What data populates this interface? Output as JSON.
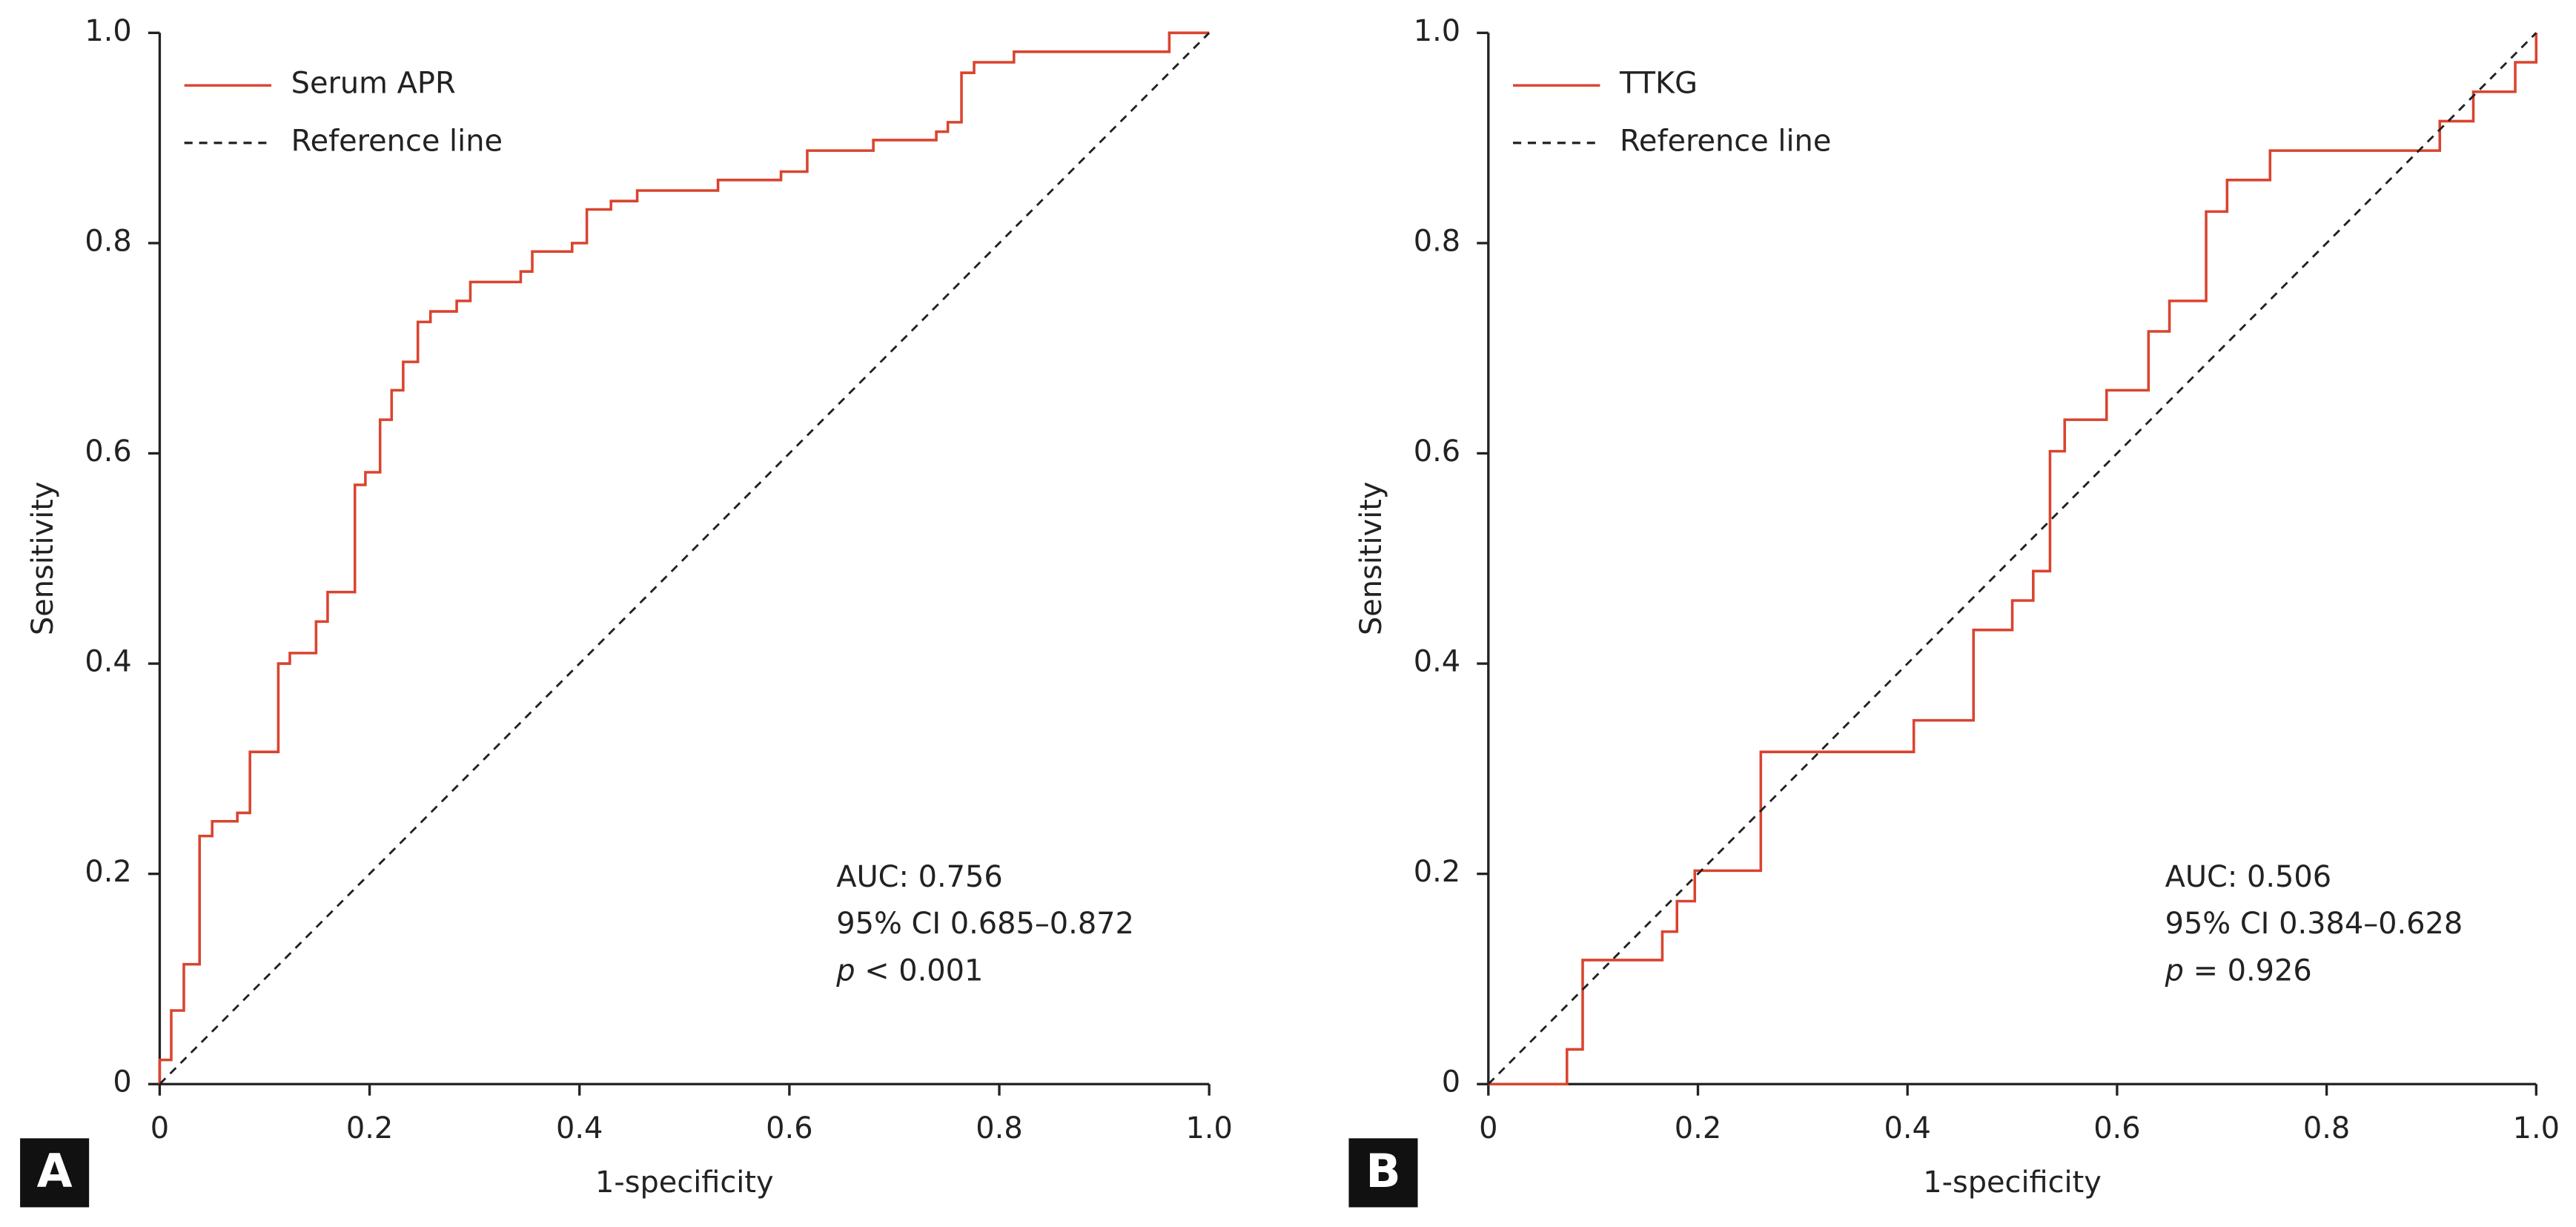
{
  "chart_data": [
    {
      "type": "line",
      "panel": "A",
      "xlabel": "1-specificity",
      "ylabel": "Sensitivity",
      "xlim": [
        0,
        1
      ],
      "ylim": [
        0,
        1
      ],
      "xticks": [
        0,
        0.2,
        0.4,
        0.6,
        0.8,
        {
          "value": 1,
          "label": "1.0"
        }
      ],
      "yticks": [
        0,
        0.2,
        0.4,
        0.6,
        0.8,
        {
          "value": 1,
          "label": "1.0"
        }
      ],
      "legend": "upper left",
      "annotations": [
        "AUC: 0.756",
        "95% CI 0.685–0.872",
        "p < 0.001"
      ],
      "series": [
        {
          "name": "Serum APR",
          "color": "#d9442f",
          "dashed": false,
          "x": [
            0,
            0,
            0.011,
            0.011,
            0.023,
            0.023,
            0.038,
            0.038,
            0.05,
            0.05,
            0.074,
            0.074,
            0.086,
            0.086,
            0.113,
            0.113,
            0.124,
            0.124,
            0.149,
            0.149,
            0.16,
            0.16,
            0.186,
            0.186,
            0.196,
            0.196,
            0.21,
            0.21,
            0.221,
            0.221,
            0.232,
            0.232,
            0.246,
            0.246,
            0.258,
            0.258,
            0.283,
            0.283,
            0.296,
            0.296,
            0.344,
            0.344,
            0.355,
            0.355,
            0.393,
            0.393,
            0.407,
            0.407,
            0.43,
            0.43,
            0.455,
            0.455,
            0.532,
            0.532,
            0.592,
            0.592,
            0.617,
            0.617,
            0.68,
            0.68,
            0.74,
            0.74,
            0.751,
            0.751,
            0.764,
            0.764,
            0.776,
            0.776,
            0.814,
            0.814,
            0.962,
            0.962,
            1
          ],
          "y": [
            0,
            0.023,
            0.023,
            0.07,
            0.07,
            0.114,
            0.114,
            0.236,
            0.236,
            0.25,
            0.25,
            0.258,
            0.258,
            0.316,
            0.316,
            0.4,
            0.4,
            0.41,
            0.41,
            0.44,
            0.44,
            0.468,
            0.468,
            0.57,
            0.57,
            0.582,
            0.582,
            0.632,
            0.632,
            0.66,
            0.66,
            0.687,
            0.687,
            0.725,
            0.725,
            0.735,
            0.735,
            0.745,
            0.745,
            0.763,
            0.763,
            0.773,
            0.773,
            0.792,
            0.792,
            0.8,
            0.8,
            0.832,
            0.832,
            0.84,
            0.84,
            0.85,
            0.85,
            0.86,
            0.86,
            0.868,
            0.868,
            0.888,
            0.888,
            0.898,
            0.898,
            0.906,
            0.906,
            0.915,
            0.915,
            0.962,
            0.962,
            0.972,
            0.972,
            0.982,
            0.982,
            1,
            1
          ]
        },
        {
          "name": "Reference line",
          "color": "#222222",
          "dashed": true,
          "x": [
            0,
            1
          ],
          "y": [
            0,
            1
          ]
        }
      ]
    },
    {
      "type": "line",
      "panel": "B",
      "xlabel": "1-specificity",
      "ylabel": "Sensitivity",
      "xlim": [
        0,
        1
      ],
      "ylim": [
        0,
        1
      ],
      "xticks": [
        0,
        0.2,
        0.4,
        0.6,
        0.8,
        {
          "value": 1,
          "label": "1.0"
        }
      ],
      "yticks": [
        0,
        0.2,
        0.4,
        0.6,
        0.8,
        {
          "value": 1,
          "label": "1.0"
        }
      ],
      "legend": "upper left",
      "annotations": [
        "AUC: 0.506",
        "95% CI 0.384–0.628",
        "p = 0.926"
      ],
      "series": [
        {
          "name": "TTKG",
          "color": "#d9442f",
          "dashed": false,
          "x": [
            0,
            0.075,
            0.075,
            0.09,
            0.09,
            0.166,
            0.166,
            0.18,
            0.18,
            0.197,
            0.197,
            0.26,
            0.26,
            0.406,
            0.406,
            0.463,
            0.463,
            0.5,
            0.5,
            0.52,
            0.52,
            0.536,
            0.536,
            0.55,
            0.55,
            0.59,
            0.59,
            0.63,
            0.63,
            0.65,
            0.65,
            0.685,
            0.685,
            0.705,
            0.705,
            0.746,
            0.746,
            0.908,
            0.908,
            0.94,
            0.94,
            0.98,
            0.98,
            1,
            1
          ],
          "y": [
            0,
            0,
            0.033,
            0.033,
            0.118,
            0.118,
            0.145,
            0.145,
            0.174,
            0.174,
            0.203,
            0.203,
            0.316,
            0.316,
            0.346,
            0.346,
            0.432,
            0.432,
            0.46,
            0.46,
            0.488,
            0.488,
            0.602,
            0.602,
            0.632,
            0.632,
            0.66,
            0.66,
            0.716,
            0.716,
            0.745,
            0.745,
            0.83,
            0.83,
            0.86,
            0.86,
            0.888,
            0.888,
            0.916,
            0.916,
            0.944,
            0.944,
            0.972,
            0.972,
            1
          ]
        },
        {
          "name": "Reference line",
          "color": "#222222",
          "dashed": true,
          "x": [
            0,
            1
          ],
          "y": [
            0,
            1
          ]
        }
      ]
    }
  ]
}
